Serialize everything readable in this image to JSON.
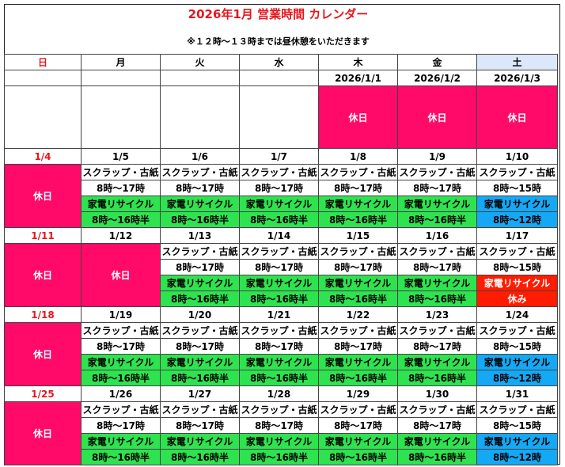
{
  "title": "2026年1月 営業時間 カレンダー",
  "note": "※１２時～１３時までは昼休憩をいただきます",
  "weekdays": [
    "日",
    "月",
    "火",
    "水",
    "木",
    "金",
    "土"
  ],
  "labels": {
    "closed": "休日",
    "scrap": "スクラップ・古紙",
    "appliance": "家電リサイクル",
    "appliance_closed": "家電リサイクル",
    "closed_short": "休み"
  },
  "colors": {
    "closed": "#ff0a68",
    "appliance_weekday": "#2ee34f",
    "appliance_saturday": "#14a8f5",
    "appliance_closed": "#ff1c00",
    "title": "#e8151c"
  },
  "weeks": [
    {
      "dates": [
        "",
        "",
        "",
        "",
        "2026/1/1",
        "2026/1/2",
        "2026/1/3"
      ],
      "cells": [
        {
          "type": "blank"
        },
        {
          "type": "blank"
        },
        {
          "type": "blank"
        },
        {
          "type": "blank"
        },
        {
          "type": "closed"
        },
        {
          "type": "closed"
        },
        {
          "type": "closed"
        }
      ]
    },
    {
      "dates": [
        "1/4",
        "1/5",
        "1/6",
        "1/7",
        "1/8",
        "1/9",
        "1/10"
      ],
      "cells": [
        {
          "type": "closed"
        },
        {
          "type": "open",
          "scrap_hours": "8時～17時",
          "appliance_hours": "8時～16時半",
          "appliance_color": "g"
        },
        {
          "type": "open",
          "scrap_hours": "8時～17時",
          "appliance_hours": "8時～16時半",
          "appliance_color": "g"
        },
        {
          "type": "open",
          "scrap_hours": "8時～17時",
          "appliance_hours": "8時～16時半",
          "appliance_color": "g"
        },
        {
          "type": "open",
          "scrap_hours": "8時～17時",
          "appliance_hours": "8時～16時半",
          "appliance_color": "g"
        },
        {
          "type": "open",
          "scrap_hours": "8時～17時",
          "appliance_hours": "8時～16時半",
          "appliance_color": "g"
        },
        {
          "type": "open",
          "scrap_hours": "8時～15時",
          "appliance_hours": "8時～12時",
          "appliance_color": "b"
        }
      ]
    },
    {
      "dates": [
        "1/11",
        "1/12",
        "1/13",
        "1/14",
        "1/15",
        "1/16",
        "1/17"
      ],
      "cells": [
        {
          "type": "closed"
        },
        {
          "type": "closed"
        },
        {
          "type": "open",
          "scrap_hours": "8時～17時",
          "appliance_hours": "8時～16時半",
          "appliance_color": "g"
        },
        {
          "type": "open",
          "scrap_hours": "8時～17時",
          "appliance_hours": "8時～16時半",
          "appliance_color": "g"
        },
        {
          "type": "open",
          "scrap_hours": "8時～17時",
          "appliance_hours": "8時～16時半",
          "appliance_color": "g"
        },
        {
          "type": "open",
          "scrap_hours": "8時～17時",
          "appliance_hours": "8時～16時半",
          "appliance_color": "g"
        },
        {
          "type": "open",
          "scrap_hours": "8時～15時",
          "appliance_hours": "休み",
          "appliance_color": "r"
        }
      ]
    },
    {
      "dates": [
        "1/18",
        "1/19",
        "1/20",
        "1/21",
        "1/22",
        "1/23",
        "1/24"
      ],
      "cells": [
        {
          "type": "closed"
        },
        {
          "type": "open",
          "scrap_hours": "8時～17時",
          "appliance_hours": "8時～16時半",
          "appliance_color": "g"
        },
        {
          "type": "open",
          "scrap_hours": "8時～17時",
          "appliance_hours": "8時～16時半",
          "appliance_color": "g"
        },
        {
          "type": "open",
          "scrap_hours": "8時～17時",
          "appliance_hours": "8時～16時半",
          "appliance_color": "g"
        },
        {
          "type": "open",
          "scrap_hours": "8時～17時",
          "appliance_hours": "8時～16時半",
          "appliance_color": "g"
        },
        {
          "type": "open",
          "scrap_hours": "8時～17時",
          "appliance_hours": "8時～16時半",
          "appliance_color": "g"
        },
        {
          "type": "open",
          "scrap_hours": "8時～15時",
          "appliance_hours": "8時～12時",
          "appliance_color": "b"
        }
      ]
    },
    {
      "dates": [
        "1/25",
        "1/26",
        "1/27",
        "1/28",
        "1/29",
        "1/30",
        "1/31"
      ],
      "cells": [
        {
          "type": "closed"
        },
        {
          "type": "open",
          "scrap_hours": "8時～17時",
          "appliance_hours": "8時～16時半",
          "appliance_color": "g"
        },
        {
          "type": "open",
          "scrap_hours": "8時～17時",
          "appliance_hours": "8時～16時半",
          "appliance_color": "g"
        },
        {
          "type": "open",
          "scrap_hours": "8時～17時",
          "appliance_hours": "8時～16時半",
          "appliance_color": "g"
        },
        {
          "type": "open",
          "scrap_hours": "8時～17時",
          "appliance_hours": "8時～16時半",
          "appliance_color": "g"
        },
        {
          "type": "open",
          "scrap_hours": "8時～17時",
          "appliance_hours": "8時～16時半",
          "appliance_color": "g"
        },
        {
          "type": "open",
          "scrap_hours": "8時～15時",
          "appliance_hours": "8時～12時",
          "appliance_color": "b"
        }
      ]
    }
  ]
}
